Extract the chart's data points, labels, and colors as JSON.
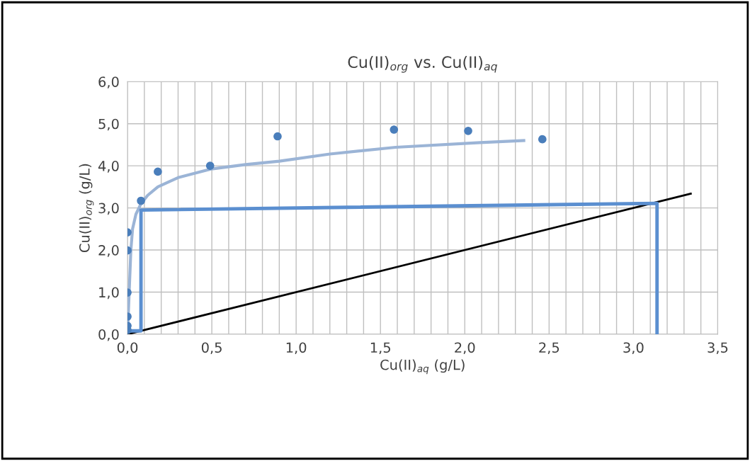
{
  "chart_data": {
    "type": "scatter",
    "title": "Cu(II)$_{org}$ vs. Cu(II)$_{aq}$",
    "xlabel": "Cu(II)$_{aq}$ (g/L)",
    "ylabel": "Cu(II)$_{org}$ (g/L)",
    "xlim": [
      0,
      3.5
    ],
    "ylim": [
      0,
      6
    ],
    "xticks": [
      {
        "value": 0,
        "label": "0,0"
      },
      {
        "value": 0.1,
        "label": null
      },
      {
        "value": 0.2,
        "label": null
      },
      {
        "value": 0.3,
        "label": null
      },
      {
        "value": 0.4,
        "label": null
      },
      {
        "value": 0.5,
        "label": "0,5"
      },
      {
        "value": 0.6,
        "label": null
      },
      {
        "value": 0.7,
        "label": null
      },
      {
        "value": 0.8,
        "label": null
      },
      {
        "value": 0.9,
        "label": null
      },
      {
        "value": 1.0,
        "label": "1,0"
      },
      {
        "value": 1.1,
        "label": null
      },
      {
        "value": 1.2,
        "label": null
      },
      {
        "value": 1.3,
        "label": null
      },
      {
        "value": 1.4,
        "label": null
      },
      {
        "value": 1.5,
        "label": "1,5"
      },
      {
        "value": 1.6,
        "label": null
      },
      {
        "value": 1.7,
        "label": null
      },
      {
        "value": 1.8,
        "label": null
      },
      {
        "value": 1.9,
        "label": null
      },
      {
        "value": 2.0,
        "label": "2,0"
      },
      {
        "value": 2.1,
        "label": null
      },
      {
        "value": 2.2,
        "label": null
      },
      {
        "value": 2.3,
        "label": null
      },
      {
        "value": 2.4,
        "label": null
      },
      {
        "value": 2.5,
        "label": "2,5"
      },
      {
        "value": 2.6,
        "label": null
      },
      {
        "value": 2.7,
        "label": null
      },
      {
        "value": 2.8,
        "label": null
      },
      {
        "value": 2.9,
        "label": null
      },
      {
        "value": 3.0,
        "label": "3,0"
      },
      {
        "value": 3.1,
        "label": null
      },
      {
        "value": 3.2,
        "label": null
      },
      {
        "value": 3.3,
        "label": null
      },
      {
        "value": 3.4,
        "label": null
      },
      {
        "value": 3.5,
        "label": "3,5"
      }
    ],
    "yticks": [
      {
        "value": 0,
        "label": "0,0"
      },
      {
        "value": 1,
        "label": "1,0"
      },
      {
        "value": 2,
        "label": "2,0"
      },
      {
        "value": 3,
        "label": "3,0"
      },
      {
        "value": 4,
        "label": "4,0"
      },
      {
        "value": 5,
        "label": "5,0"
      },
      {
        "value": 6,
        "label": "6,0"
      }
    ],
    "grid": true,
    "legend": false,
    "series": [
      {
        "color": "#4a7ebb",
        "marker": "circle",
        "x": [
          0.0,
          0.0,
          0.0,
          0.0,
          0.0,
          0.0,
          0.08,
          0.18,
          0.49,
          0.89,
          1.58,
          2.02,
          2.46
        ],
        "values": [
          0.1,
          0.2,
          0.42,
          0.99,
          1.99,
          2.42,
          3.17,
          3.86,
          4.0,
          4.7,
          4.86,
          4.83,
          4.63
        ]
      },
      {
        "type": "line",
        "color": "#9bb4d6",
        "marker": "none",
        "x": [
          0,
          0.01,
          0.02,
          0.03,
          0.05,
          0.08,
          0.12,
          0.18,
          0.3,
          0.49,
          0.7,
          0.9,
          1.2,
          1.59,
          2.09,
          2.35
        ],
        "values": [
          0,
          1.0,
          2.0,
          2.5,
          2.85,
          3.1,
          3.3,
          3.5,
          3.72,
          3.92,
          4.03,
          4.11,
          4.28,
          4.44,
          4.55,
          4.6
        ]
      },
      {
        "type": "line",
        "color": "#000000",
        "marker": "none",
        "x": [
          0,
          3.34
        ],
        "values": [
          0,
          3.34
        ]
      },
      {
        "type": "line",
        "color": "#5b8fd0",
        "marker": "none",
        "x": [
          3.14,
          3.14,
          0.08,
          0.08,
          0.01
        ],
        "values": [
          0,
          3.11,
          2.95,
          0.08,
          0.08
        ]
      }
    ]
  }
}
